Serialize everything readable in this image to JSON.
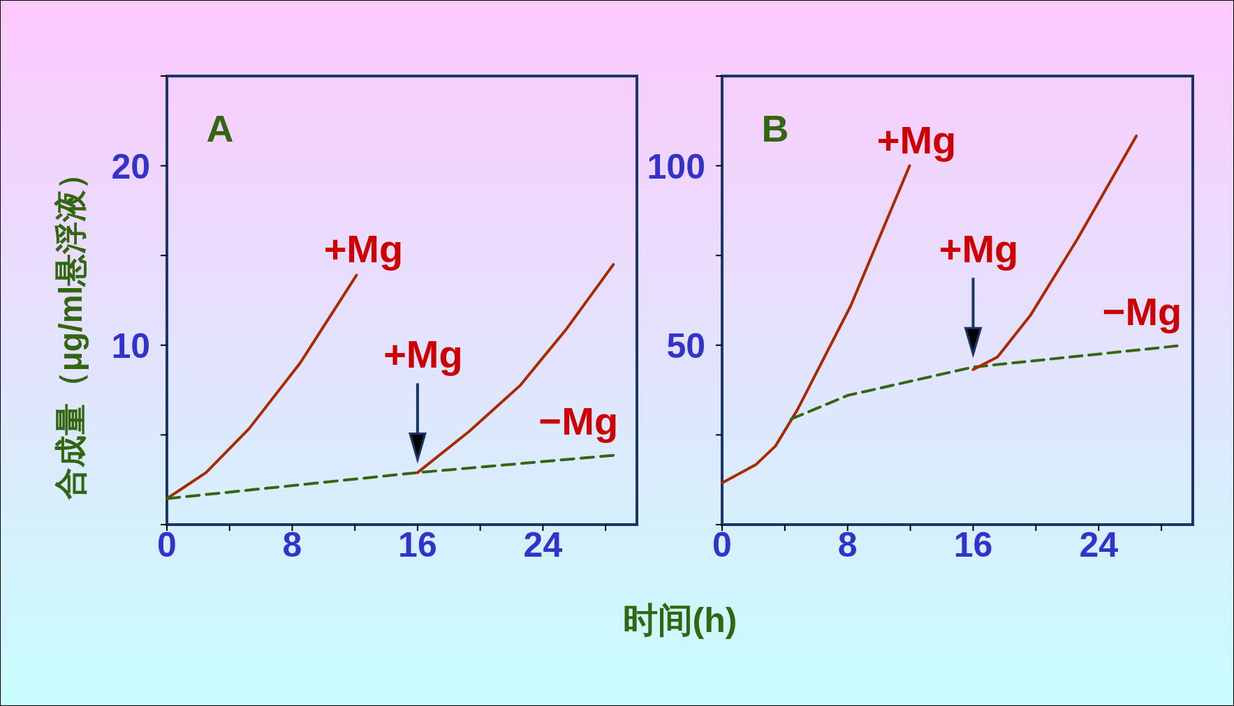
{
  "chart_data": [
    {
      "type": "line",
      "title": "A",
      "ylabel": "合成量（μg/ml悬浮液）",
      "xlabel": "时间(h)",
      "xlim": [
        0,
        30
      ],
      "xticks": [
        0,
        {
          "value": 4,
          "label": null
        },
        8,
        {
          "value": 12,
          "label": null
        },
        16,
        {
          "value": 20,
          "label": null
        },
        24,
        {
          "value": 28,
          "label": null
        }
      ],
      "ylim": [
        0,
        25
      ],
      "yticks": [
        {
          "value": 0,
          "label": null
        },
        {
          "value": 5,
          "label": null
        },
        10,
        {
          "value": 15,
          "label": null
        },
        20,
        {
          "value": 25,
          "label": null
        }
      ],
      "series": [
        {
          "color": "#aa2a00",
          "line_style": "solid",
          "x": [
            0,
            2.5,
            5.25,
            8.5,
            12.1
          ],
          "values": [
            1.45,
            2.9,
            5.35,
            9.0,
            13.9
          ]
        },
        {
          "color": "#336611",
          "line_style": "dashed",
          "x": [
            0,
            16,
            28.5
          ],
          "values": [
            1.45,
            2.9,
            3.86
          ]
        },
        {
          "color": "#aa2a00",
          "line_style": "solid",
          "x": [
            16,
            19.3,
            22.55,
            25.5,
            28.5
          ],
          "values": [
            2.9,
            5.2,
            7.76,
            10.9,
            14.5
          ]
        }
      ],
      "annotations": [
        {
          "text": "+Mg",
          "x": 12.1,
          "y": 13.9
        },
        {
          "text": "+Mg",
          "x": 16,
          "y": 2.9
        },
        {
          "text": "−Mg",
          "x": 28.5,
          "y": 3.86
        }
      ]
    },
    {
      "type": "line",
      "title": "B",
      "xlim": [
        0,
        30
      ],
      "xticks": [
        0,
        {
          "value": 4,
          "label": null
        },
        8,
        {
          "value": 12,
          "label": null
        },
        16,
        {
          "value": 20,
          "label": null
        },
        24,
        {
          "value": 28,
          "label": null
        }
      ],
      "ylim": [
        0,
        125
      ],
      "yticks": [
        {
          "value": 0,
          "label": null
        },
        {
          "value": 25,
          "label": null
        },
        50,
        {
          "value": 75,
          "label": null
        },
        100,
        {
          "value": 125,
          "label": null
        }
      ],
      "series": [
        {
          "color": "#aa2a00",
          "line_style": "solid",
          "x": [
            0,
            2.15,
            3.4,
            4.8,
            8.2,
            11.95
          ],
          "values": [
            11.6,
            16.7,
            21.9,
            32,
            61,
            100
          ]
        },
        {
          "color": "#336611",
          "line_style": "dashed",
          "x": [
            4.4,
            8,
            16,
            29
          ],
          "values": [
            29.4,
            36,
            43.9,
            49.8
          ]
        },
        {
          "color": "#aa2a00",
          "line_style": "solid",
          "x": [
            16,
            17.55,
            19.65,
            22.65,
            26.4
          ],
          "values": [
            43.2,
            46.7,
            58.3,
            79.6,
            108.3
          ]
        }
      ],
      "annotations": [
        {
          "text": "+Mg",
          "x": 11.95,
          "y": 100
        },
        {
          "text": "+Mg",
          "x": 16,
          "y": 43.9
        },
        {
          "text": "−Mg",
          "x": 29,
          "y": 49.8
        }
      ]
    }
  ]
}
